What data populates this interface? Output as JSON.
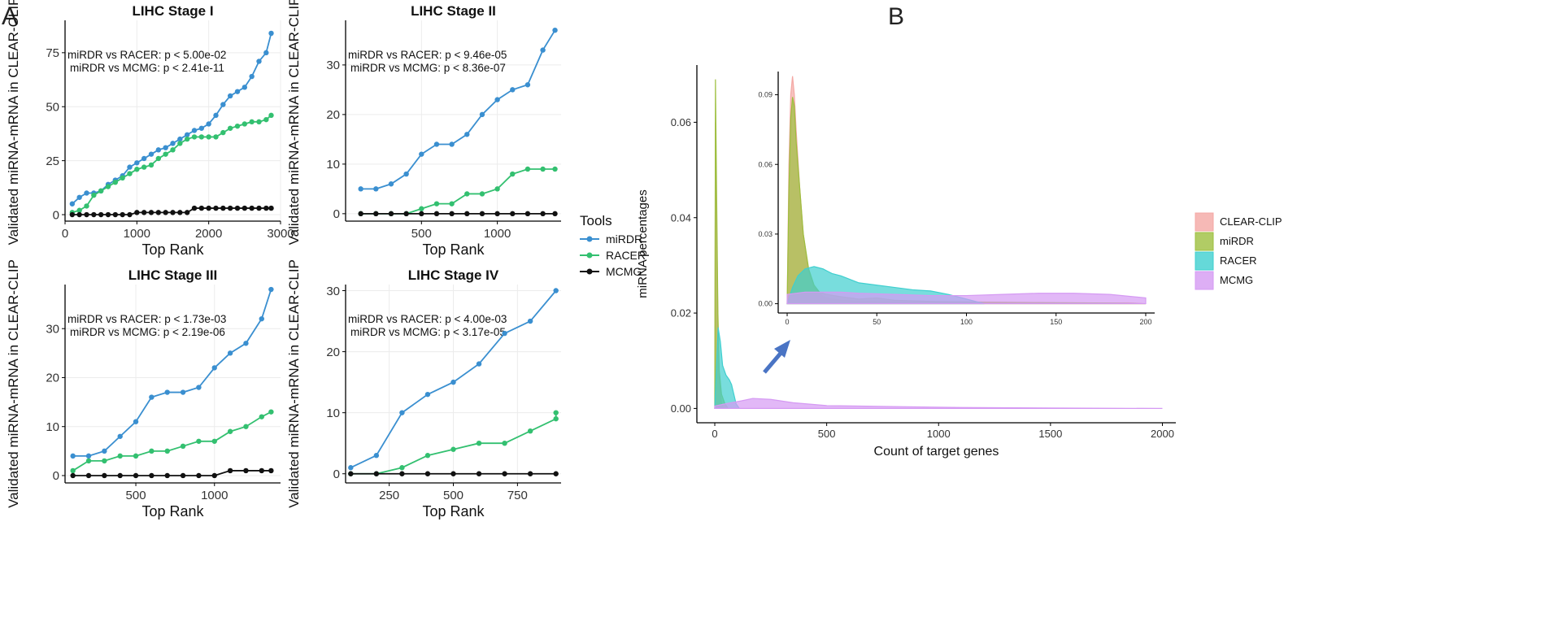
{
  "panel_labels": {
    "a": "A",
    "b": "B"
  },
  "colors": {
    "mirdr": "#3a8fd0",
    "racer": "#33c070",
    "mcmg": "#111111",
    "clearclip": "#f4a8a4",
    "mirdr_density": "#9dbf3e",
    "racer_density": "#3fcfcf",
    "mcmg_density": "#d59af3",
    "arrow": "#4a74c4"
  },
  "legend_a": {
    "title": "Tools",
    "items": [
      {
        "name": "miRDR",
        "color": "#3a8fd0"
      },
      {
        "name": "RACER",
        "color": "#33c070"
      },
      {
        "name": "MCMG",
        "color": "#111111"
      }
    ]
  },
  "legend_b": {
    "items": [
      {
        "name": "CLEAR-CLIP",
        "color": "#f4a8a4"
      },
      {
        "name": "miRDR",
        "color": "#9dbf3e"
      },
      {
        "name": "RACER",
        "color": "#3fcfcf"
      },
      {
        "name": "MCMG",
        "color": "#d59af3"
      }
    ]
  },
  "chart_data": [
    {
      "type": "line",
      "title": "LIHC Stage I",
      "xlabel": "Top Rank",
      "ylabel": "Validated miRNA-mRNA in CLEAR-CLIP",
      "xlim": [
        0,
        3000
      ],
      "ylim": [
        -3,
        90
      ],
      "xticks": [
        0,
        1000,
        2000,
        3000
      ],
      "yticks": [
        0,
        25,
        50,
        75
      ],
      "annotations": [
        "miRDR vs RACER: p < 5.00e-02",
        "miRDR vs MCMG: p < 2.41e-11"
      ],
      "series": [
        {
          "name": "miRDR",
          "x": [
            100,
            200,
            300,
            400,
            500,
            600,
            700,
            800,
            900,
            1000,
            1100,
            1200,
            1300,
            1400,
            1500,
            1600,
            1700,
            1800,
            1900,
            2000,
            2100,
            2200,
            2300,
            2400,
            2500,
            2600,
            2700,
            2800,
            2870
          ],
          "y": [
            5,
            8,
            10,
            10,
            11,
            14,
            16,
            18,
            22,
            24,
            26,
            28,
            30,
            31,
            33,
            35,
            37,
            39,
            40,
            42,
            46,
            51,
            55,
            57,
            59,
            64,
            71,
            75,
            84
          ]
        },
        {
          "name": "RACER",
          "x": [
            100,
            200,
            300,
            400,
            500,
            600,
            700,
            800,
            900,
            1000,
            1100,
            1200,
            1300,
            1400,
            1500,
            1600,
            1700,
            1800,
            1900,
            2000,
            2100,
            2200,
            2300,
            2400,
            2500,
            2600,
            2700,
            2800,
            2870
          ],
          "y": [
            1,
            2,
            4,
            9,
            11,
            13,
            15,
            17,
            19,
            21,
            22,
            23,
            26,
            28,
            30,
            33,
            35,
            36,
            36,
            36,
            36,
            38,
            40,
            41,
            42,
            43,
            43,
            44,
            46
          ]
        },
        {
          "name": "MCMG",
          "x": [
            100,
            200,
            300,
            400,
            500,
            600,
            700,
            800,
            900,
            1000,
            1100,
            1200,
            1300,
            1400,
            1500,
            1600,
            1700,
            1800,
            1900,
            2000,
            2100,
            2200,
            2300,
            2400,
            2500,
            2600,
            2700,
            2800,
            2870
          ],
          "y": [
            0,
            0,
            0,
            0,
            0,
            0,
            0,
            0,
            0,
            1,
            1,
            1,
            1,
            1,
            1,
            1,
            1,
            3,
            3,
            3,
            3,
            3,
            3,
            3,
            3,
            3,
            3,
            3,
            3
          ]
        }
      ]
    },
    {
      "type": "line",
      "title": "LIHC Stage II",
      "xlabel": "Top Rank",
      "ylabel": "Validated miRNA-mRNA in CLEAR-CLIP",
      "xlim": [
        0,
        1420
      ],
      "ylim": [
        -1.5,
        39
      ],
      "xticks": [
        500,
        1000
      ],
      "yticks": [
        0,
        10,
        20,
        30
      ],
      "annotations": [
        "miRDR vs RACER: p < 9.46e-05",
        "miRDR vs MCMG: p < 8.36e-07"
      ],
      "series": [
        {
          "name": "miRDR",
          "x": [
            100,
            200,
            300,
            400,
            500,
            600,
            700,
            800,
            900,
            1000,
            1100,
            1200,
            1300,
            1380
          ],
          "y": [
            5,
            5,
            6,
            8,
            12,
            14,
            14,
            16,
            20,
            23,
            25,
            26,
            33,
            37
          ]
        },
        {
          "name": "RACER",
          "x": [
            100,
            200,
            300,
            400,
            500,
            600,
            700,
            800,
            900,
            1000,
            1100,
            1200,
            1300,
            1380
          ],
          "y": [
            0,
            0,
            0,
            0,
            1,
            2,
            2,
            4,
            4,
            5,
            8,
            9,
            9,
            9
          ]
        },
        {
          "name": "MCMG",
          "x": [
            100,
            200,
            300,
            400,
            500,
            600,
            700,
            800,
            900,
            1000,
            1100,
            1200,
            1300,
            1380
          ],
          "y": [
            0,
            0,
            0,
            0,
            0,
            0,
            0,
            0,
            0,
            0,
            0,
            0,
            0,
            0
          ]
        }
      ]
    },
    {
      "type": "line",
      "title": "LIHC Stage III",
      "xlabel": "Top Rank",
      "ylabel": "Validated miRNA-mRNA in CLEAR-CLIP",
      "xlim": [
        50,
        1420
      ],
      "ylim": [
        -1.5,
        39
      ],
      "xticks": [
        500,
        1000
      ],
      "yticks": [
        0,
        10,
        20,
        30
      ],
      "annotations": [
        "miRDR vs RACER: p < 1.73e-03",
        "miRDR vs MCMG: p < 2.19e-06"
      ],
      "series": [
        {
          "name": "miRDR",
          "x": [
            100,
            200,
            300,
            400,
            500,
            600,
            700,
            800,
            900,
            1000,
            1100,
            1200,
            1300,
            1360
          ],
          "y": [
            4,
            4,
            5,
            8,
            11,
            16,
            17,
            17,
            18,
            22,
            25,
            27,
            32,
            38
          ]
        },
        {
          "name": "RACER",
          "x": [
            100,
            200,
            300,
            400,
            500,
            600,
            700,
            800,
            900,
            1000,
            1100,
            1200,
            1300,
            1360
          ],
          "y": [
            1,
            3,
            3,
            4,
            4,
            5,
            5,
            6,
            7,
            7,
            9,
            10,
            12,
            13
          ]
        },
        {
          "name": "MCMG",
          "x": [
            100,
            200,
            300,
            400,
            500,
            600,
            700,
            800,
            900,
            1000,
            1100,
            1200,
            1300,
            1360
          ],
          "y": [
            0,
            0,
            0,
            0,
            0,
            0,
            0,
            0,
            0,
            0,
            1,
            1,
            1,
            1
          ]
        }
      ]
    },
    {
      "type": "line",
      "title": "LIHC Stage IV",
      "xlabel": "Top Rank",
      "ylabel": "Validated miRNA-mRNA in CLEAR-CLIP",
      "xlim": [
        80,
        920
      ],
      "ylim": [
        -1.5,
        31
      ],
      "xticks": [
        250,
        500,
        750
      ],
      "yticks": [
        0,
        10,
        20,
        30
      ],
      "annotations": [
        "miRDR vs RACER: p < 4.00e-03",
        "miRDR vs MCMG: p < 3.17e-05"
      ],
      "series": [
        {
          "name": "miRDR",
          "x": [
            100,
            200,
            300,
            400,
            500,
            600,
            700,
            800,
            900
          ],
          "y": [
            1,
            3,
            10,
            13,
            15,
            18,
            23,
            25,
            30
          ]
        },
        {
          "name": "RACER",
          "x": [
            100,
            200,
            300,
            400,
            500,
            600,
            700,
            800,
            900,
            900
          ],
          "y": [
            0,
            0,
            1,
            3,
            4,
            5,
            5,
            7,
            9,
            10
          ]
        },
        {
          "name": "MCMG",
          "x": [
            100,
            200,
            300,
            400,
            500,
            600,
            700,
            800,
            900
          ],
          "y": [
            0,
            0,
            0,
            0,
            0,
            0,
            0,
            0,
            0
          ]
        }
      ]
    },
    {
      "type": "area",
      "title": "",
      "xlabel": "Count of target genes",
      "ylabel": "miRNA percentages",
      "xlim": [
        -80,
        2060
      ],
      "ylim": [
        -0.003,
        0.072
      ],
      "xticks": [
        0,
        500,
        1000,
        1500,
        2000
      ],
      "yticks": [
        0.0,
        0.02,
        0.04,
        0.06
      ],
      "ytick_labels": [
        "0.00",
        "0.02",
        "0.04",
        "0.06"
      ],
      "series": [
        {
          "name": "CLEAR-CLIP",
          "x": [
            0,
            3,
            8,
            14,
            20,
            30,
            40
          ],
          "y": [
            0,
            0.06,
            0.04,
            0.018,
            0.006,
            0.001,
            0
          ]
        },
        {
          "name": "miRDR",
          "x": [
            0,
            3,
            8,
            14,
            20,
            30,
            45,
            60
          ],
          "y": [
            0,
            0.069,
            0.046,
            0.02,
            0.008,
            0.003,
            0.001,
            0
          ]
        },
        {
          "name": "RACER",
          "x": [
            0,
            5,
            15,
            25,
            35,
            50,
            65,
            75,
            85,
            95,
            110
          ],
          "y": [
            0,
            0.006,
            0.017,
            0.014,
            0.009,
            0.007,
            0.006,
            0.005,
            0.003,
            0.001,
            0
          ]
        },
        {
          "name": "MCMG",
          "x": [
            0,
            50,
            120,
            170,
            250,
            350,
            500,
            800,
            1100,
            1500,
            1700,
            2000
          ],
          "y": [
            0.0005,
            0.001,
            0.0016,
            0.0021,
            0.0019,
            0.0012,
            0.0006,
            0.0004,
            0.0002,
            0.0001,
            5e-05,
            0
          ]
        }
      ]
    },
    {
      "type": "area",
      "title": "inset",
      "xlabel": "",
      "ylabel": "",
      "xlim": [
        -5,
        205
      ],
      "ylim": [
        -0.004,
        0.1
      ],
      "xticks": [
        0,
        50,
        100,
        150,
        200
      ],
      "yticks": [
        0.0,
        0.03,
        0.06,
        0.09
      ],
      "ytick_labels": [
        "0.00",
        "0.03",
        "0.06",
        "0.09"
      ],
      "series": [
        {
          "name": "CLEAR-CLIP",
          "x": [
            0,
            1,
            2,
            3,
            4,
            5,
            7,
            9,
            12,
            15,
            20,
            25,
            30,
            40,
            60,
            80,
            100,
            140,
            180,
            190,
            200
          ],
          "y": [
            0,
            0.06,
            0.09,
            0.098,
            0.09,
            0.075,
            0.05,
            0.03,
            0.014,
            0.007,
            0.003,
            0.002,
            0.0015,
            0.001,
            0.0008,
            0.0005,
            0.0004,
            0.0003,
            0.0003,
            0.0004,
            0
          ]
        },
        {
          "name": "miRDR",
          "x": [
            0,
            1,
            2,
            3,
            4,
            5,
            7,
            9,
            12,
            15,
            18,
            22,
            30,
            40,
            50,
            60,
            80,
            100,
            140,
            180,
            200
          ],
          "y": [
            0,
            0.05,
            0.08,
            0.089,
            0.085,
            0.07,
            0.05,
            0.03,
            0.015,
            0.008,
            0.005,
            0.004,
            0.003,
            0.002,
            0.0025,
            0.0015,
            0.001,
            0.0008,
            0.0005,
            0.0003,
            0
          ]
        },
        {
          "name": "RACER",
          "x": [
            0,
            3,
            6,
            10,
            15,
            20,
            25,
            30,
            40,
            50,
            60,
            70,
            80,
            90,
            100,
            110
          ],
          "y": [
            0,
            0.007,
            0.012,
            0.015,
            0.016,
            0.015,
            0.013,
            0.012,
            0.009,
            0.008,
            0.007,
            0.006,
            0.0055,
            0.004,
            0.002,
            0
          ]
        },
        {
          "name": "MCMG",
          "x": [
            0,
            10,
            20,
            30,
            40,
            60,
            80,
            100,
            120,
            140,
            160,
            180,
            200
          ],
          "y": [
            0.004,
            0.005,
            0.005,
            0.005,
            0.0045,
            0.004,
            0.0035,
            0.0035,
            0.004,
            0.0045,
            0.0045,
            0.004,
            0.0025
          ]
        }
      ]
    }
  ]
}
